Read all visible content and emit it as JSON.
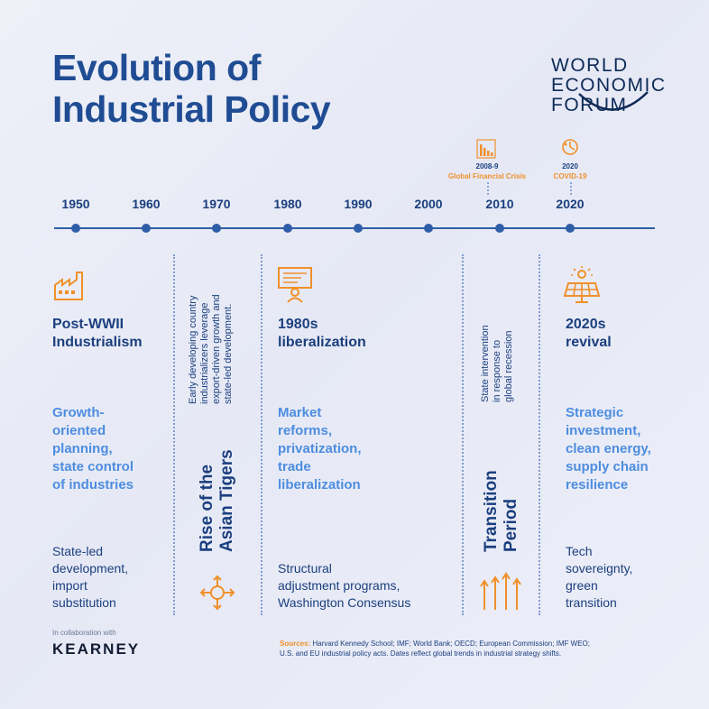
{
  "title": [
    "Evolution of",
    "Industrial Policy"
  ],
  "logo": {
    "lines": [
      "WORLD",
      "ECONOMIC",
      "FORUM"
    ]
  },
  "timeline": {
    "years": [
      "1950",
      "1960",
      "1970",
      "1980",
      "1990",
      "2000",
      "2010",
      "2020"
    ],
    "events": [
      {
        "year": "2008-9",
        "label": "Global Financial Crisis",
        "icon": "declining-chart-icon"
      },
      {
        "year": "2020",
        "label": "COVID-19",
        "icon": "virus-icon"
      }
    ]
  },
  "eras": {
    "postwar": {
      "heading": [
        "Post-WWII",
        "Industrialism"
      ],
      "policy": [
        "Growth-",
        "oriented",
        "planning,",
        "state control",
        "of industries"
      ],
      "outcome": [
        "State-led",
        "development,",
        "import",
        "substitution"
      ],
      "icon": "factory-icon"
    },
    "tigers": {
      "note": [
        "Early developing country",
        "industrializers leverage",
        "export-driven growth and",
        "state-led development."
      ],
      "heading": [
        "Rise of the",
        "Asian Tigers"
      ],
      "icon": "expansion-arrows-icon"
    },
    "liberalization": {
      "heading": [
        "1980s",
        "liberalization"
      ],
      "policy": [
        "Market",
        "reforms,",
        "privatization,",
        "trade",
        "liberalization"
      ],
      "outcome": [
        "Structural",
        "adjustment programs,",
        "Washington Consensus"
      ],
      "icon": "presenter-icon"
    },
    "transition": {
      "note": [
        "State intervention",
        "in response to",
        "global recession"
      ],
      "heading": [
        "Transition",
        "Period"
      ],
      "icon": "upward-arrows-icon"
    },
    "revival": {
      "heading": [
        "2020s",
        "revival"
      ],
      "policy": [
        "Strategic",
        "investment,",
        "clean energy,",
        "supply chain",
        "resilience"
      ],
      "outcome": [
        "Tech",
        "sovereignty,",
        "green",
        "transition"
      ],
      "icon": "solar-panel-icon"
    }
  },
  "footer": {
    "collab": "In collaboration with",
    "partner": "KEARNEY",
    "sources_label": "Sources:",
    "sources_text": "Harvard Kennedy School; IMF; World Bank; OECD; European Commission; IMF WEO;",
    "sources_text2": "U.S. and EU industrial policy acts. Dates reflect global trends in industrial strategy shifts."
  },
  "colors": {
    "navy": "#1b3f7e",
    "blue": "#4d8de0",
    "orange": "#f0902a",
    "title": "#1f4c93"
  }
}
